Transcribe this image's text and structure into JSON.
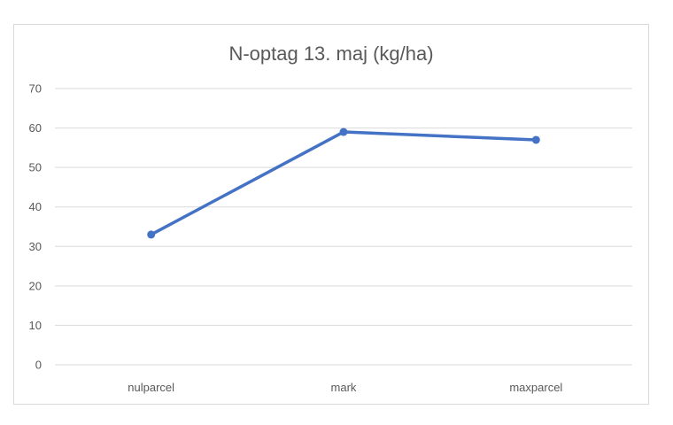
{
  "chart_data": {
    "type": "line",
    "title": "N-optag 13. maj (kg/ha)",
    "categories": [
      "nulparcel",
      "mark",
      "maxparcel"
    ],
    "series": [
      {
        "values": [
          33,
          59,
          57
        ],
        "color": "#4472c4"
      }
    ],
    "ylim": [
      0,
      70
    ],
    "yticks": [
      0,
      10,
      20,
      30,
      40,
      50,
      60,
      70
    ],
    "grid": true,
    "legend": "none",
    "axis_text_color": "#595959",
    "gridline_color": "#d9d9d9"
  }
}
